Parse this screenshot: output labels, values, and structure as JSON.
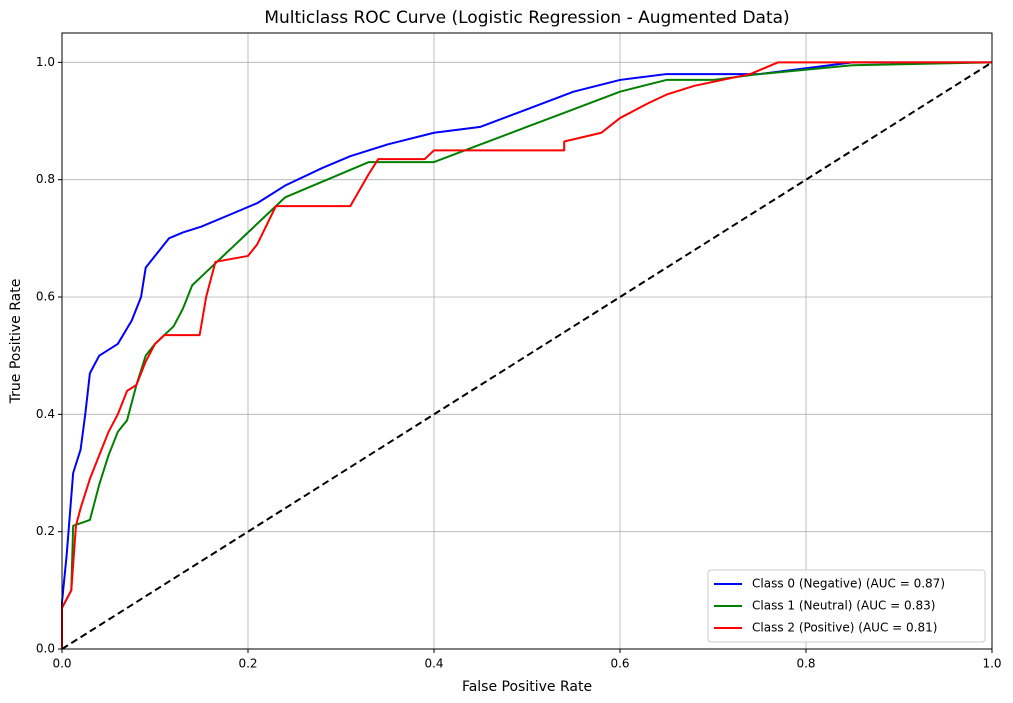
{
  "chart_data": {
    "type": "line",
    "title": "Multiclass ROC Curve (Logistic Regression - Augmented Data)",
    "xlabel": "False Positive Rate",
    "ylabel": "True Positive Rate",
    "xlim": [
      0,
      1
    ],
    "ylim": [
      0,
      1.05
    ],
    "xticks": [
      {
        "value": 0,
        "label": "0.0"
      },
      0.2,
      0.4,
      0.6,
      0.8,
      {
        "value": 1,
        "label": "1.0"
      }
    ],
    "yticks": [
      {
        "value": 0,
        "label": "0.0"
      },
      0.2,
      0.4,
      0.6,
      0.8,
      {
        "value": 1,
        "label": "1.0"
      }
    ],
    "grid": true,
    "legend": "lower right",
    "series": [
      {
        "name": "Class 0 (Negative) (AUC = 0.87)",
        "color": "blue",
        "x": [
          0,
          0,
          0.005,
          0.008,
          0.012,
          0.02,
          0.025,
          0.03,
          0.04,
          0.06,
          0.075,
          0.085,
          0.09,
          0.1,
          0.115,
          0.13,
          0.15,
          0.18,
          0.21,
          0.24,
          0.28,
          0.31,
          0.35,
          0.4,
          0.45,
          0.5,
          0.55,
          0.6,
          0.65,
          0.75,
          0.8,
          0.85,
          1
        ],
        "values": [
          0,
          0.08,
          0.16,
          0.22,
          0.3,
          0.34,
          0.4,
          0.47,
          0.5,
          0.52,
          0.56,
          0.6,
          0.65,
          0.67,
          0.7,
          0.71,
          0.72,
          0.74,
          0.76,
          0.79,
          0.82,
          0.84,
          0.86,
          0.88,
          0.89,
          0.92,
          0.95,
          0.97,
          0.98,
          0.98,
          0.99,
          1,
          1
        ]
      },
      {
        "name": "Class 1 (Neutral) (AUC = 0.83)",
        "color": "green",
        "x": [
          0,
          0,
          0.01,
          0.012,
          0.03,
          0.04,
          0.05,
          0.06,
          0.07,
          0.08,
          0.09,
          0.1,
          0.12,
          0.13,
          0.14,
          0.16,
          0.18,
          0.2,
          0.22,
          0.24,
          0.27,
          0.3,
          0.33,
          0.4,
          0.45,
          0.5,
          0.55,
          0.6,
          0.65,
          0.7,
          0.75,
          0.85,
          1
        ],
        "values": [
          0,
          0.07,
          0.1,
          0.21,
          0.22,
          0.28,
          0.33,
          0.37,
          0.39,
          0.45,
          0.5,
          0.52,
          0.55,
          0.58,
          0.62,
          0.65,
          0.68,
          0.71,
          0.74,
          0.77,
          0.79,
          0.81,
          0.83,
          0.83,
          0.86,
          0.89,
          0.92,
          0.95,
          0.97,
          0.97,
          0.98,
          0.995,
          1
        ]
      },
      {
        "name": "Class 2 (Positive) (AUC = 0.81)",
        "color": "red",
        "x": [
          0,
          0,
          0.01,
          0.015,
          0.02,
          0.03,
          0.04,
          0.05,
          0.06,
          0.07,
          0.08,
          0.09,
          0.1,
          0.11,
          0.148,
          0.155,
          0.165,
          0.2,
          0.21,
          0.23,
          0.31,
          0.33,
          0.34,
          0.39,
          0.4,
          0.54,
          0.54,
          0.58,
          0.6,
          0.63,
          0.65,
          0.68,
          0.74,
          0.77,
          1
        ],
        "values": [
          0,
          0.07,
          0.1,
          0.21,
          0.24,
          0.29,
          0.33,
          0.37,
          0.4,
          0.44,
          0.45,
          0.49,
          0.52,
          0.535,
          0.535,
          0.6,
          0.66,
          0.67,
          0.69,
          0.755,
          0.755,
          0.81,
          0.835,
          0.835,
          0.85,
          0.85,
          0.865,
          0.88,
          0.905,
          0.93,
          0.945,
          0.96,
          0.98,
          1,
          1
        ]
      },
      {
        "color": "black",
        "dashed": true,
        "x": [
          0,
          1
        ],
        "values": [
          0,
          1
        ]
      }
    ]
  }
}
